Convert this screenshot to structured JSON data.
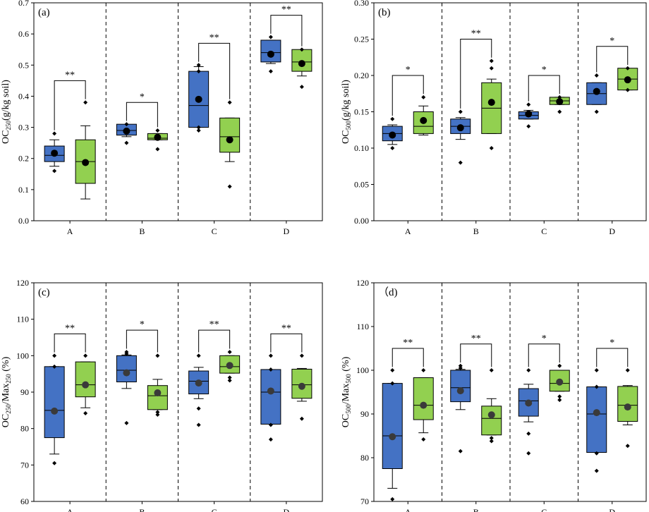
{
  "colors": {
    "blue": "#4472C4",
    "green": "#92D050",
    "mean": "#3a3a3a",
    "outlier": "#000000"
  },
  "chart_data": [
    {
      "panel": "(a)",
      "type": "box",
      "ylabel": {
        "main": "OC",
        "sub": "250",
        "rest": "(g/kg soil)"
      },
      "ylim": [
        0,
        0.7
      ],
      "yticks": [
        "0.0",
        "0.1",
        "0.2",
        "0.3",
        "0.4",
        "0.5",
        "0.6",
        "0.7"
      ],
      "categories": [
        "A",
        "B",
        "C",
        "D"
      ],
      "significance": [
        "**",
        "*",
        "**",
        "**"
      ],
      "series": [
        {
          "name": "blue",
          "boxes": [
            {
              "q1": 0.19,
              "q3": 0.24,
              "median": 0.21,
              "wlow": 0.175,
              "whigh": 0.26,
              "mean": 0.217,
              "points": [
                0.16,
                0.28
              ]
            },
            {
              "q1": 0.275,
              "q3": 0.31,
              "median": 0.29,
              "wlow": 0.27,
              "whigh": 0.305,
              "mean": 0.288,
              "points": [
                0.25,
                0.31
              ]
            },
            {
              "q1": 0.3,
              "q3": 0.48,
              "median": 0.37,
              "wlow": 0.3,
              "whigh": 0.495,
              "mean": 0.39,
              "points": [
                0.29,
                0.3,
                0.48,
                0.5
              ]
            },
            {
              "q1": 0.51,
              "q3": 0.58,
              "median": 0.54,
              "wlow": 0.505,
              "whigh": 0.58,
              "mean": 0.535,
              "points": [
                0.48,
                0.59
              ]
            }
          ]
        },
        {
          "name": "green",
          "boxes": [
            {
              "q1": 0.12,
              "q3": 0.26,
              "median": 0.19,
              "wlow": 0.07,
              "whigh": 0.305,
              "mean": 0.187,
              "points": [
                0.38
              ]
            },
            {
              "q1": 0.26,
              "q3": 0.28,
              "median": 0.265,
              "wlow": 0.26,
              "whigh": 0.28,
              "mean": 0.268,
              "points": [
                0.23,
                0.29
              ]
            },
            {
              "q1": 0.22,
              "q3": 0.33,
              "median": 0.27,
              "wlow": 0.19,
              "whigh": 0.33,
              "mean": 0.26,
              "points": [
                0.11,
                0.38
              ]
            },
            {
              "q1": 0.48,
              "q3": 0.55,
              "median": 0.51,
              "wlow": 0.465,
              "whigh": 0.545,
              "mean": 0.505,
              "points": [
                0.43,
                0.55
              ]
            }
          ]
        }
      ]
    },
    {
      "panel": "(b)",
      "type": "box",
      "ylabel": {
        "main": "OC",
        "sub": "500",
        "rest": "(g/kg soil)"
      },
      "ylim": [
        0,
        0.3
      ],
      "yticks": [
        "0.00",
        "0.05",
        "0.10",
        "0.15",
        "0.20",
        "0.25",
        "0.30"
      ],
      "categories": [
        "A",
        "B",
        "C",
        "D"
      ],
      "significance": [
        "*",
        "**",
        "*",
        "*"
      ],
      "series": [
        {
          "name": "blue",
          "boxes": [
            {
              "q1": 0.11,
              "q3": 0.13,
              "median": 0.12,
              "wlow": 0.105,
              "whigh": 0.132,
              "mean": 0.118,
              "points": [
                0.1,
                0.14
              ]
            },
            {
              "q1": 0.12,
              "q3": 0.14,
              "median": 0.13,
              "wlow": 0.112,
              "whigh": 0.142,
              "mean": 0.128,
              "points": [
                0.08,
                0.15
              ]
            },
            {
              "q1": 0.14,
              "q3": 0.15,
              "median": 0.145,
              "wlow": 0.14,
              "whigh": 0.152,
              "mean": 0.147,
              "points": [
                0.13,
                0.16
              ]
            },
            {
              "q1": 0.16,
              "q3": 0.19,
              "median": 0.175,
              "wlow": 0.16,
              "whigh": 0.19,
              "mean": 0.178,
              "points": [
                0.15,
                0.2
              ]
            }
          ]
        },
        {
          "name": "green",
          "boxes": [
            {
              "q1": 0.12,
              "q3": 0.15,
              "median": 0.13,
              "wlow": 0.118,
              "whigh": 0.158,
              "mean": 0.138,
              "points": [
                0.17
              ]
            },
            {
              "q1": 0.12,
              "q3": 0.19,
              "median": 0.155,
              "wlow": 0.12,
              "whigh": 0.195,
              "mean": 0.163,
              "points": [
                0.1,
                0.21,
                0.22
              ]
            },
            {
              "q1": 0.16,
              "q3": 0.17,
              "median": 0.165,
              "wlow": 0.16,
              "whigh": 0.17,
              "mean": 0.164,
              "points": [
                0.15,
                0.17
              ]
            },
            {
              "q1": 0.18,
              "q3": 0.21,
              "median": 0.195,
              "wlow": 0.18,
              "whigh": 0.205,
              "mean": 0.194,
              "points": [
                0.18,
                0.21
              ]
            }
          ]
        }
      ]
    },
    {
      "panel": "(c)",
      "type": "box",
      "ylabel": {
        "main": "OC",
        "sub": "250",
        "mid": "/Max",
        "sub2": "250",
        "rest": " (%)"
      },
      "ylim": [
        60,
        120
      ],
      "yticks": [
        "60",
        "70",
        "80",
        "90",
        "100",
        "110",
        "120"
      ],
      "categories": [
        "A",
        "B",
        "C",
        "D"
      ],
      "significance": [
        "**",
        "*",
        "**",
        "**"
      ],
      "series": [
        {
          "name": "blue",
          "boxes": [
            {
              "q1": 77.5,
              "q3": 97,
              "median": 85,
              "wlow": 73,
              "whigh": 97,
              "mean": 84.8,
              "points": [
                70.5,
                97,
                100
              ]
            },
            {
              "q1": 92.8,
              "q3": 100,
              "median": 96,
              "wlow": 91,
              "whigh": 100.2,
              "mean": 95.3,
              "points": [
                81.5,
                100.5,
                101
              ]
            },
            {
              "q1": 89.5,
              "q3": 95.8,
              "median": 93,
              "wlow": 88.2,
              "whigh": 96.8,
              "mean": 92.5,
              "points": [
                81,
                85.5,
                100
              ]
            },
            {
              "q1": 81.2,
              "q3": 96.2,
              "median": 90,
              "wlow": 84.5,
              "whigh": 96.2,
              "mean": 90.3,
              "points": [
                77,
                81,
                96.2,
                100
              ]
            }
          ]
        },
        {
          "name": "green",
          "boxes": [
            {
              "q1": 88.7,
              "q3": 98.3,
              "median": 92,
              "wlow": 85.7,
              "whigh": 98.3,
              "mean": 92,
              "points": [
                84.2,
                100
              ]
            },
            {
              "q1": 85.2,
              "q3": 91.8,
              "median": 89,
              "wlow": 85.2,
              "whigh": 93.5,
              "mean": 89.8,
              "points": [
                83.8,
                84.5,
                100
              ]
            },
            {
              "q1": 95.2,
              "q3": 100,
              "median": 97,
              "wlow": 95.2,
              "whigh": 100,
              "mean": 97.3,
              "points": [
                93.2,
                94,
                101
              ]
            },
            {
              "q1": 88.3,
              "q3": 96.3,
              "median": 92,
              "wlow": 87.5,
              "whigh": 96.5,
              "mean": 91.6,
              "points": [
                82.7,
                100
              ]
            }
          ]
        }
      ]
    },
    {
      "panel": "（d)",
      "type": "box",
      "ylabel": {
        "main": "OC",
        "sub": "500",
        "mid": "/Max",
        "sub2": "500",
        "rest": " (%)"
      },
      "ylim": [
        70,
        120
      ],
      "yticks": [
        "70",
        "80",
        "90",
        "100",
        "110",
        "120"
      ],
      "categories": [
        "A",
        "B",
        "C",
        "D"
      ],
      "significance": [
        "**",
        "**",
        "*",
        "*"
      ],
      "series": [
        {
          "name": "blue",
          "boxes": [
            {
              "q1": 77.5,
              "q3": 97,
              "median": 85,
              "wlow": 73,
              "whigh": 97,
              "mean": 84.8,
              "points": [
                70.5,
                97,
                100
              ]
            },
            {
              "q1": 92.8,
              "q3": 100,
              "median": 96,
              "wlow": 91,
              "whigh": 100.2,
              "mean": 95.3,
              "points": [
                81.5,
                100.5,
                101
              ]
            },
            {
              "q1": 89.5,
              "q3": 95.8,
              "median": 93,
              "wlow": 88.2,
              "whigh": 96.8,
              "mean": 92.5,
              "points": [
                81,
                85.5,
                100
              ]
            },
            {
              "q1": 81.2,
              "q3": 96.2,
              "median": 90,
              "wlow": 84.5,
              "whigh": 96.2,
              "mean": 90.3,
              "points": [
                77,
                81,
                96.2,
                100
              ]
            }
          ]
        },
        {
          "name": "green",
          "boxes": [
            {
              "q1": 88.7,
              "q3": 98.3,
              "median": 92,
              "wlow": 85.7,
              "whigh": 98.3,
              "mean": 92,
              "points": [
                84.2,
                100
              ]
            },
            {
              "q1": 85.2,
              "q3": 91.8,
              "median": 89,
              "wlow": 85.2,
              "whigh": 93.5,
              "mean": 89.8,
              "points": [
                83.8,
                84.5,
                100
              ]
            },
            {
              "q1": 95.2,
              "q3": 100,
              "median": 97,
              "wlow": 95.2,
              "whigh": 100,
              "mean": 97.3,
              "points": [
                93.2,
                94,
                101
              ]
            },
            {
              "q1": 88.3,
              "q3": 96.3,
              "median": 92,
              "wlow": 87.5,
              "whigh": 96.5,
              "mean": 91.6,
              "points": [
                82.7,
                100
              ]
            }
          ]
        }
      ]
    }
  ]
}
